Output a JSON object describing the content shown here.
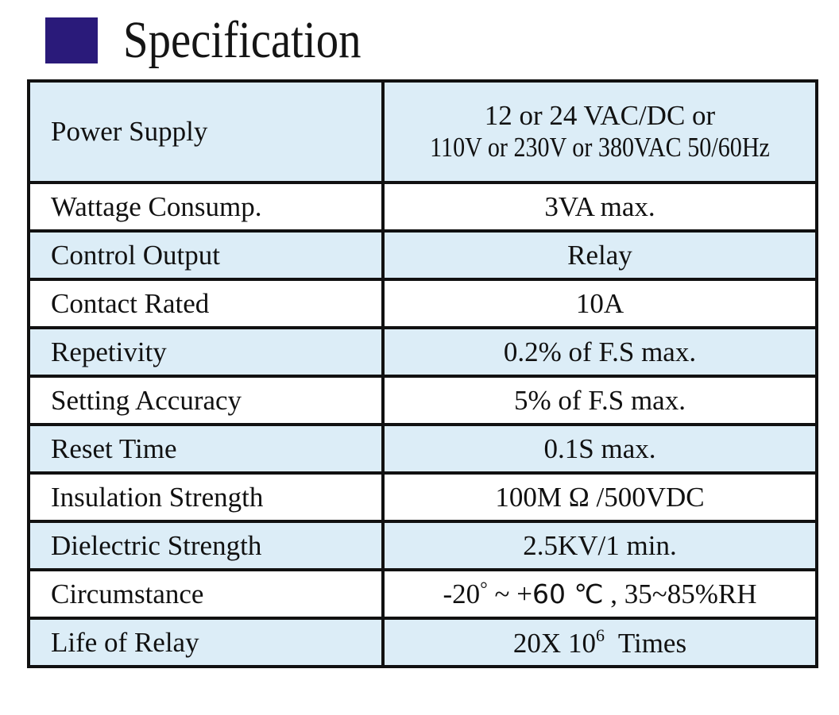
{
  "header": {
    "title": "Specification",
    "accent_color": "#2a1a7a"
  },
  "colors": {
    "shaded_cell": "#dcedf7",
    "border": "#111111"
  },
  "specs": [
    {
      "label": "Power Supply",
      "value_line1": "12 or 24 VAC/DC or",
      "value_line2": "110V or 230V or 380VAC  50/60Hz"
    },
    {
      "label": "Wattage Consump.",
      "value": "3VA max."
    },
    {
      "label": "Control Output",
      "value": "Relay"
    },
    {
      "label": "Contact Rated",
      "value": "10A"
    },
    {
      "label": "Repetivity",
      "value": "0.2% of F.S max."
    },
    {
      "label": "Setting Accuracy",
      "value": "5% of F.S max."
    },
    {
      "label": "Reset Time",
      "value": "0.1S max."
    },
    {
      "label": "Insulation Strength",
      "value": "100M Ω /500VDC"
    },
    {
      "label": "Dielectric Strength",
      "value": "2.5KV/1 min."
    },
    {
      "label": "Circumstance",
      "value_part1": "-20",
      "value_deg": "°",
      "value_part2": " ~ +",
      "value_part3": "60 ℃",
      "value_part4": " , 35~85%RH"
    },
    {
      "label": "Life of Relay",
      "value_base": "20X 10",
      "value_exp": "6",
      "value_suffix": "  Times"
    }
  ]
}
